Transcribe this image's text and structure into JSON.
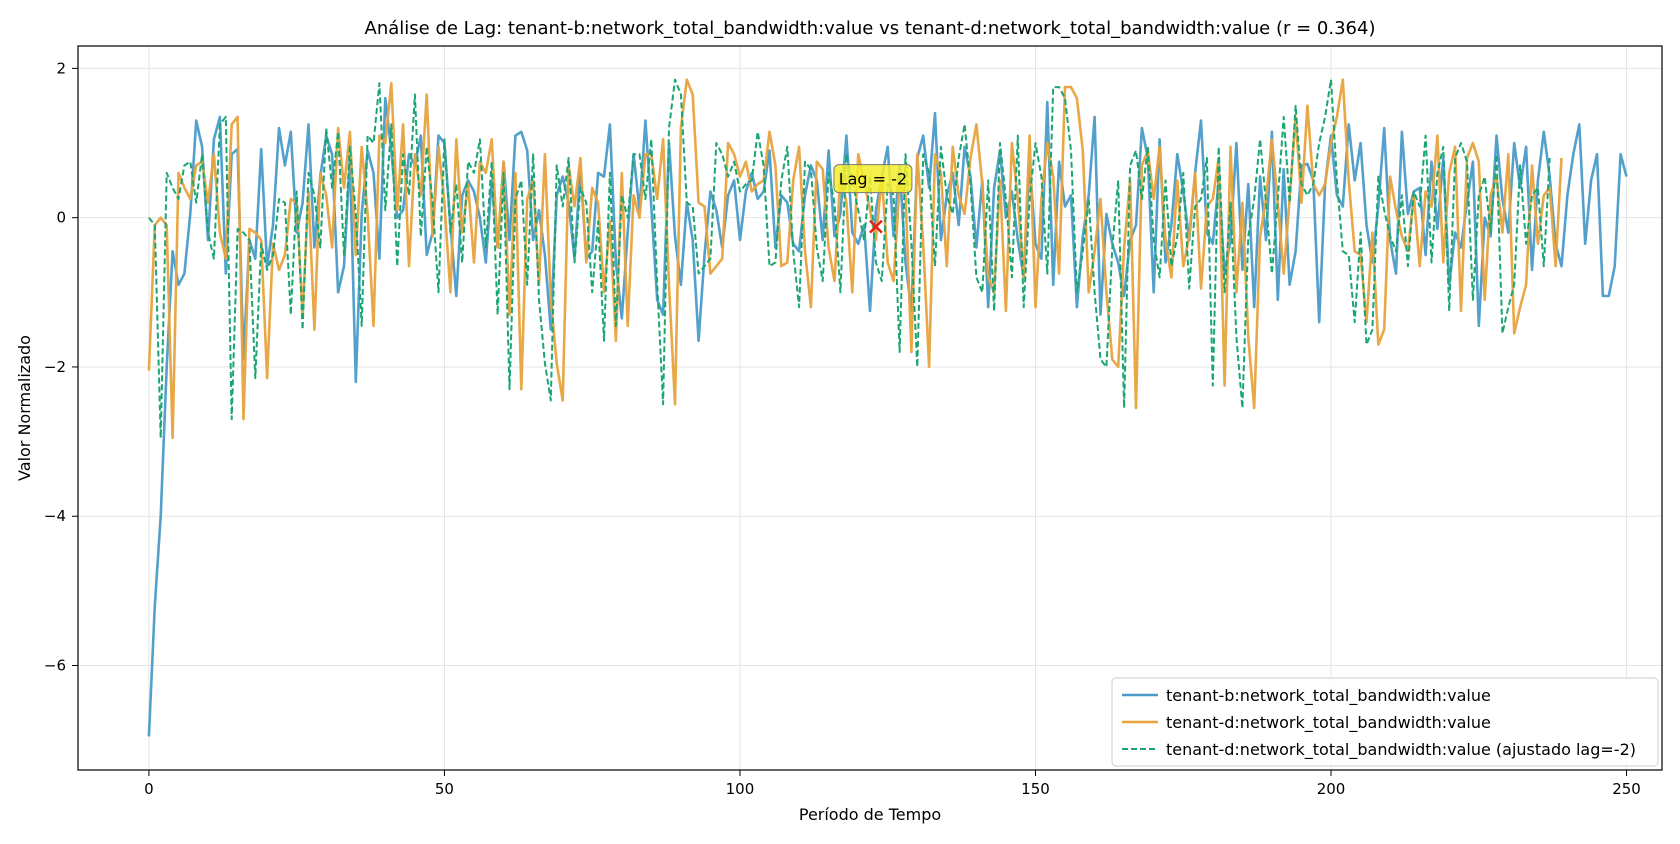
{
  "chart_data": {
    "type": "line",
    "title": "Análise de Lag: tenant-b:network_total_bandwidth:value vs tenant-d:network_total_bandwidth:value (r = 0.364)",
    "xlabel": "Período de Tempo",
    "ylabel": "Valor Normalizado",
    "xlim": [
      -12,
      256
    ],
    "ylim": [
      -7.4,
      2.3
    ],
    "xticks": [
      0,
      50,
      100,
      150,
      200,
      250
    ],
    "yticks": [
      2,
      0,
      -2,
      -4,
      -6
    ],
    "ytick_labels": [
      "2",
      "0",
      "−2",
      "−4",
      "−6"
    ],
    "grid": true,
    "legend_position": "lower-right",
    "annotation": {
      "text": "Lag = -2",
      "x": 123,
      "y": -0.12,
      "marker": "x"
    },
    "series": [
      {
        "name": "tenant-b:network_total_bandwidth:value",
        "color": "#4a9bc9",
        "style": "solid",
        "x_start": 0,
        "values": [
          -6.95,
          -5.2,
          -4.0,
          -2.0,
          -0.45,
          -0.9,
          -0.75,
          0.05,
          1.3,
          0.95,
          -0.3,
          1.05,
          1.35,
          -0.75,
          0.85,
          0.92,
          -1.9,
          -0.3,
          -0.55,
          0.92,
          -0.65,
          -0.1,
          1.2,
          0.7,
          1.15,
          -0.2,
          0.2,
          1.25,
          -0.4,
          0.55,
          1.1,
          0.85,
          -1.0,
          -0.65,
          0.8,
          -2.2,
          0.05,
          0.9,
          0.6,
          -0.55,
          1.6,
          0.9,
          0.0,
          0.1,
          0.85,
          0.7,
          1.1,
          -0.5,
          -0.2,
          1.1,
          1.0,
          -0.1,
          -1.05,
          0.3,
          0.5,
          0.35,
          0.0,
          -0.6,
          0.5,
          -0.4,
          0.75,
          -0.3,
          1.1,
          1.15,
          0.9,
          -0.3,
          0.1,
          -0.5,
          -1.5,
          0.3,
          0.55,
          0.2,
          -0.55,
          0.65,
          -0.55,
          -0.45,
          0.6,
          0.55,
          1.25,
          -0.6,
          -1.35,
          -0.2,
          0.85,
          0.1,
          1.3,
          0.15,
          -1.1,
          -1.3,
          1.0,
          -0.25,
          -0.9,
          0.2,
          -0.3,
          -1.65,
          -0.5,
          0.35,
          0.1,
          -0.4,
          0.3,
          0.5,
          -0.3,
          0.35,
          0.6,
          0.25,
          0.35,
          0.9,
          -0.4,
          0.3,
          0.2,
          -0.35,
          -0.45,
          0.3,
          0.7,
          0.5,
          -0.3,
          0.9,
          -0.25,
          0.05,
          1.1,
          -0.2,
          -0.35,
          -0.1,
          -1.25,
          0.1,
          0.55,
          0.95,
          -0.25,
          0.7,
          -0.6,
          -1.25,
          0.8,
          1.1,
          0.4,
          1.4,
          -0.3,
          0.3,
          0.6,
          -0.1,
          0.95,
          0.55,
          -0.4,
          0.5,
          -1.2,
          0.4,
          0.9,
          0.0,
          0.35,
          -0.3,
          -0.8,
          0.75,
          -0.35,
          -0.55,
          1.55,
          -0.9,
          0.75,
          0.15,
          0.3,
          -1.2,
          -0.25,
          0.3,
          1.35,
          -1.3,
          0.05,
          -0.35,
          -0.6,
          -1.05,
          -0.3,
          -0.1,
          1.2,
          0.8,
          -1.0,
          1.05,
          -0.6,
          -0.1,
          0.85,
          0.35,
          -0.3,
          0.6,
          1.3,
          -0.2,
          -0.35,
          0.5,
          -0.75,
          -0.3,
          1.0,
          -0.7,
          0.45,
          -1.2,
          0.55,
          -0.3,
          1.15,
          -1.1,
          0.65,
          -0.9,
          -0.45,
          0.7,
          0.72,
          0.5,
          -1.4,
          0.45,
          1.1,
          0.3,
          0.15,
          1.25,
          0.5,
          1.0,
          -0.1,
          -0.6,
          0.15,
          1.2,
          -0.3,
          -0.75,
          1.15,
          0.05,
          0.35,
          0.4,
          -0.5,
          0.75,
          -0.15,
          0.8,
          -0.9,
          -0.2,
          -0.4,
          0.2,
          0.75,
          -1.45,
          0.0,
          -0.25,
          1.1,
          0.25,
          -0.2,
          1.0,
          0.4,
          0.95,
          -0.7,
          0.5,
          1.15,
          0.55,
          -0.35,
          -0.65,
          0.3,
          0.85,
          1.25,
          -0.35,
          0.5,
          0.85,
          -1.05,
          -1.05,
          -0.65,
          0.85,
          0.55
        ]
      },
      {
        "name": "tenant-d:network_total_bandwidth:value",
        "color": "#e8a33d",
        "style": "solid",
        "x_start": 0,
        "values": [
          -2.05,
          -0.1,
          0.0,
          -0.1,
          -2.95,
          0.6,
          0.4,
          0.25,
          0.7,
          0.75,
          0.2,
          0.85,
          -0.2,
          -0.55,
          1.25,
          1.35,
          -2.7,
          -0.15,
          -0.2,
          -0.3,
          -2.15,
          -0.35,
          -0.7,
          -0.5,
          0.25,
          0.2,
          -1.3,
          0.35,
          -1.5,
          0.6,
          0.3,
          -0.4,
          1.2,
          0.4,
          1.15,
          -0.5,
          0.95,
          0.05,
          -1.45,
          1.1,
          1.0,
          1.8,
          0.1,
          1.25,
          -0.65,
          0.85,
          0.3,
          1.65,
          -0.25,
          0.95,
          0.2,
          -1.0,
          1.05,
          -0.2,
          0.45,
          -0.6,
          0.75,
          0.6,
          1.05,
          -0.4,
          0.75,
          -1.3,
          0.6,
          -2.3,
          0.25,
          0.5,
          -0.9,
          0.85,
          -1.1,
          -1.95,
          -2.45,
          0.7,
          0.15,
          0.8,
          -0.6,
          0.4,
          0.2,
          -1.0,
          -0.05,
          -1.65,
          0.6,
          -1.45,
          0.3,
          0.0,
          0.85,
          0.85,
          0.25,
          1.05,
          -0.9,
          -2.5,
          1.2,
          1.85,
          1.65,
          0.2,
          0.15,
          -0.75,
          -0.65,
          -0.55,
          1.0,
          0.85,
          0.55,
          0.75,
          0.35,
          0.45,
          0.5,
          1.15,
          0.7,
          -0.65,
          -0.6,
          0.5,
          0.95,
          -0.45,
          -1.2,
          0.75,
          0.65,
          -0.4,
          -0.85,
          0.6,
          0.2,
          -1.0,
          0.85,
          0.5,
          0.1,
          -0.3,
          0.55,
          -0.6,
          -0.85,
          0.45,
          0.3,
          -1.8,
          0.85,
          -0.35,
          -2.0,
          0.85,
          0.6,
          -0.65,
          0.95,
          0.3,
          0.05,
          0.8,
          1.25,
          0.45,
          -0.8,
          -1.0,
          0.5,
          -1.25,
          1.0,
          0.25,
          -0.8,
          1.1,
          -1.2,
          0.25,
          1.0,
          0.55,
          -0.75,
          1.75,
          1.75,
          1.6,
          0.9,
          -1.0,
          -0.45,
          0.25,
          -1.0,
          -1.9,
          -2.0,
          -0.4,
          0.5,
          -2.55,
          0.7,
          0.9,
          0.25,
          0.95,
          -0.3,
          -0.8,
          0.5,
          -0.65,
          -0.25,
          0.6,
          -0.95,
          0.15,
          0.25,
          0.8,
          -2.25,
          0.95,
          -1.0,
          0.2,
          -1.6,
          -2.55,
          -0.25,
          0.25,
          1.05,
          0.2,
          -0.75,
          0.25,
          1.35,
          0.2,
          1.5,
          0.45,
          0.3,
          0.45,
          1.0,
          1.35,
          1.85,
          0.5,
          -0.45,
          -0.5,
          -1.4,
          -0.2,
          -1.7,
          -1.5,
          0.55,
          0.1,
          -0.25,
          -0.45,
          0.3,
          -0.65,
          0.35,
          0.15,
          1.1,
          -0.6,
          0.6,
          0.95,
          -1.25,
          0.8,
          1.0,
          0.75,
          -1.1,
          0.3,
          0.55,
          -0.2,
          0.85,
          -1.55,
          -1.2,
          -0.9,
          0.7,
          -0.35,
          0.3,
          0.4,
          -0.65,
          0.8
        ]
      },
      {
        "name": "tenant-d:network_total_bandwidth:value (ajustado lag=-2)",
        "color": "#1aa673",
        "style": "dashed",
        "x_start": 0,
        "values": [
          0.0,
          -0.1,
          -2.95,
          0.6,
          0.4,
          0.25,
          0.7,
          0.75,
          0.2,
          0.85,
          -0.2,
          -0.55,
          1.25,
          1.35,
          -2.7,
          -0.15,
          -0.2,
          -0.3,
          -2.15,
          -0.35,
          -0.7,
          -0.5,
          0.25,
          0.2,
          -1.3,
          0.35,
          -1.5,
          0.6,
          0.3,
          -0.4,
          1.2,
          0.4,
          1.15,
          -0.5,
          0.95,
          0.05,
          -1.45,
          1.1,
          1.0,
          1.8,
          0.1,
          1.25,
          -0.65,
          0.85,
          0.3,
          1.65,
          -0.25,
          0.95,
          0.2,
          -1.0,
          1.05,
          -0.2,
          0.45,
          -0.6,
          0.75,
          0.6,
          1.05,
          -0.4,
          0.75,
          -1.3,
          0.6,
          -2.3,
          0.25,
          0.5,
          -0.9,
          0.85,
          -1.1,
          -1.95,
          -2.45,
          0.7,
          0.15,
          0.8,
          -0.6,
          0.4,
          0.2,
          -1.0,
          -0.05,
          -1.65,
          0.6,
          -1.45,
          0.3,
          0.0,
          0.85,
          0.85,
          0.25,
          1.05,
          -0.9,
          -2.5,
          1.2,
          1.85,
          1.65,
          0.2,
          0.15,
          -0.75,
          -0.65,
          -0.55,
          1.0,
          0.85,
          0.55,
          0.75,
          0.35,
          0.45,
          0.5,
          1.15,
          0.7,
          -0.65,
          -0.6,
          0.5,
          0.95,
          -0.45,
          -1.2,
          0.75,
          0.65,
          -0.4,
          -0.85,
          0.6,
          0.2,
          -1.0,
          0.85,
          0.5,
          0.1,
          -0.3,
          0.55,
          -0.6,
          -0.85,
          0.45,
          0.3,
          -1.8,
          0.85,
          -0.35,
          -2.0,
          0.85,
          0.6,
          -0.65,
          0.95,
          0.3,
          0.05,
          0.8,
          1.25,
          0.45,
          -0.8,
          -1.0,
          0.5,
          -1.25,
          1.0,
          0.25,
          -0.8,
          1.1,
          -1.2,
          0.25,
          1.0,
          0.55,
          -0.75,
          1.75,
          1.75,
          1.6,
          0.9,
          -1.0,
          -0.45,
          0.25,
          -1.0,
          -1.9,
          -2.0,
          -0.4,
          0.5,
          -2.55,
          0.7,
          0.9,
          0.25,
          0.95,
          -0.3,
          -0.8,
          0.5,
          -0.65,
          -0.25,
          0.6,
          -0.95,
          0.15,
          0.25,
          0.8,
          -2.25,
          0.95,
          -1.0,
          0.2,
          -1.6,
          -2.55,
          -0.25,
          0.25,
          1.05,
          0.2,
          -0.75,
          0.25,
          1.35,
          0.2,
          1.5,
          0.45,
          0.3,
          0.45,
          1.0,
          1.35,
          1.85,
          0.5,
          -0.45,
          -0.5,
          -1.4,
          -0.2,
          -1.7,
          -1.5,
          0.55,
          0.1,
          -0.25,
          -0.45,
          0.3,
          -0.65,
          0.35,
          0.15,
          1.1,
          -0.6,
          0.6,
          0.95,
          -1.25,
          0.8,
          1.0,
          0.75,
          -1.1,
          0.3,
          0.55,
          -0.2,
          0.85,
          -1.55,
          -1.2,
          -0.9,
          0.7,
          -0.35,
          0.3,
          0.4,
          -0.65,
          0.8
        ]
      }
    ]
  }
}
